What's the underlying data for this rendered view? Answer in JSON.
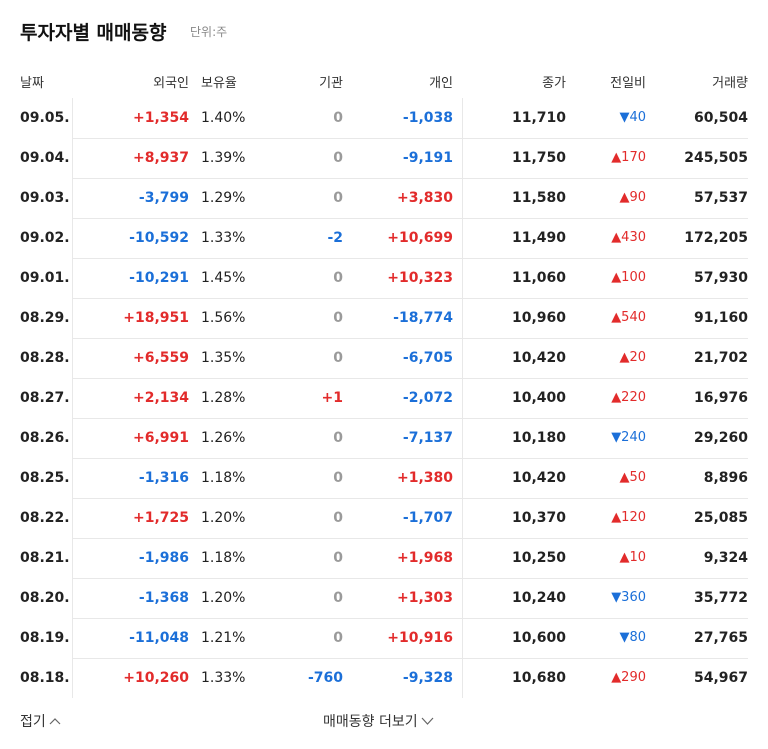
{
  "header": {
    "title": "투자자별 매매동향",
    "unit": "단위:주"
  },
  "table": {
    "columns": [
      "날짜",
      "외국인",
      "보유율",
      "기관",
      "개인",
      "종가",
      "전일비",
      "거래량"
    ],
    "rows": [
      [
        "09.05.",
        "+1,354",
        "1.40%",
        "0",
        "-1,038",
        "11,710",
        "▼40",
        "60,504"
      ],
      [
        "09.04.",
        "+8,937",
        "1.39%",
        "0",
        "-9,191",
        "11,750",
        "▲170",
        "245,505"
      ],
      [
        "09.03.",
        "-3,799",
        "1.29%",
        "0",
        "+3,830",
        "11,580",
        "▲90",
        "57,537"
      ],
      [
        "09.02.",
        "-10,592",
        "1.33%",
        "-2",
        "+10,699",
        "11,490",
        "▲430",
        "172,205"
      ],
      [
        "09.01.",
        "-10,291",
        "1.45%",
        "0",
        "+10,323",
        "11,060",
        "▲100",
        "57,930"
      ],
      [
        "08.29.",
        "+18,951",
        "1.56%",
        "0",
        "-18,774",
        "10,960",
        "▲540",
        "91,160"
      ],
      [
        "08.28.",
        "+6,559",
        "1.35%",
        "0",
        "-6,705",
        "10,420",
        "▲20",
        "21,702"
      ],
      [
        "08.27.",
        "+2,134",
        "1.28%",
        "+1",
        "-2,072",
        "10,400",
        "▲220",
        "16,976"
      ],
      [
        "08.26.",
        "+6,991",
        "1.26%",
        "0",
        "-7,137",
        "10,180",
        "▼240",
        "29,260"
      ],
      [
        "08.25.",
        "-1,316",
        "1.18%",
        "0",
        "+1,380",
        "10,420",
        "▲50",
        "8,896"
      ],
      [
        "08.22.",
        "+1,725",
        "1.20%",
        "0",
        "-1,707",
        "10,370",
        "▲120",
        "25,085"
      ],
      [
        "08.21.",
        "-1,986",
        "1.18%",
        "0",
        "+1,968",
        "10,250",
        "▲10",
        "9,324"
      ],
      [
        "08.20.",
        "-1,368",
        "1.20%",
        "0",
        "+1,303",
        "10,240",
        "▼360",
        "35,772"
      ],
      [
        "08.19.",
        "-11,048",
        "1.21%",
        "0",
        "+10,916",
        "10,600",
        "▼80",
        "27,765"
      ],
      [
        "08.18.",
        "+10,260",
        "1.33%",
        "-760",
        "-9,328",
        "10,680",
        "▲290",
        "54,967"
      ]
    ]
  },
  "footer": {
    "collapse": "접기",
    "more": "매매동향 더보기"
  }
}
